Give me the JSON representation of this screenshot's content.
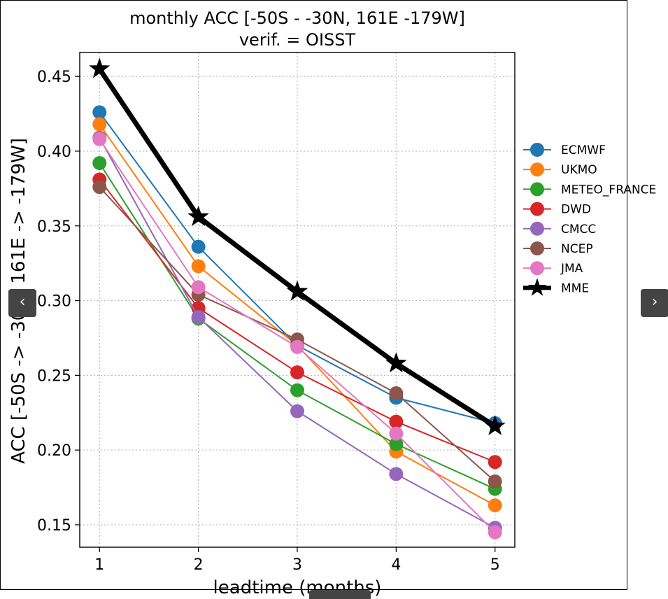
{
  "nav": {
    "prev_label": "‹",
    "next_label": "›"
  },
  "colors": {
    "ECMWF": "#1f77b4",
    "UKMO": "#ff7f0e",
    "METEO_FRANCE": "#2ca02c",
    "DWD": "#d62728",
    "CMCC": "#9467bd",
    "NCEP": "#8c564b",
    "JMA": "#e377c2",
    "MME": "#000000"
  },
  "chart_data": {
    "type": "line",
    "title": "monthly ACC [-50S - -30N, 161E -179W]",
    "subtitle": "verif. = OISST",
    "xlabel": "leadtime (months)",
    "ylabel": "ACC [-50S -> -30N, 161E -> -179W]",
    "x": [
      1,
      2,
      3,
      4,
      5
    ],
    "x_ticks": [
      "1",
      "2",
      "3",
      "4",
      "5"
    ],
    "y_ticks": [
      "0.15",
      "0.20",
      "0.25",
      "0.30",
      "0.35",
      "0.40",
      "0.45"
    ],
    "xlim": [
      0.8,
      5.2
    ],
    "ylim": [
      0.135,
      0.466
    ],
    "grid": true,
    "legend_position": "outside-right",
    "series": [
      {
        "name": "ECMWF",
        "marker": "circle",
        "values": [
          0.426,
          0.336,
          0.27,
          0.235,
          0.218
        ]
      },
      {
        "name": "UKMO",
        "marker": "circle",
        "values": [
          0.418,
          0.323,
          0.27,
          0.199,
          0.163
        ]
      },
      {
        "name": "METEO_FRANCE",
        "marker": "circle",
        "values": [
          0.392,
          0.288,
          0.24,
          0.204,
          0.174
        ]
      },
      {
        "name": "DWD",
        "marker": "circle",
        "values": [
          0.381,
          0.295,
          0.252,
          0.219,
          0.192
        ]
      },
      {
        "name": "CMCC",
        "marker": "circle",
        "values": [
          0.409,
          0.289,
          0.226,
          0.184,
          0.148
        ]
      },
      {
        "name": "NCEP",
        "marker": "circle",
        "values": [
          0.376,
          0.304,
          0.274,
          0.238,
          0.179
        ]
      },
      {
        "name": "JMA",
        "marker": "circle",
        "values": [
          0.408,
          0.309,
          0.269,
          0.211,
          0.145
        ]
      },
      {
        "name": "MME",
        "marker": "star",
        "values": [
          0.455,
          0.356,
          0.306,
          0.258,
          0.216
        ]
      }
    ]
  }
}
